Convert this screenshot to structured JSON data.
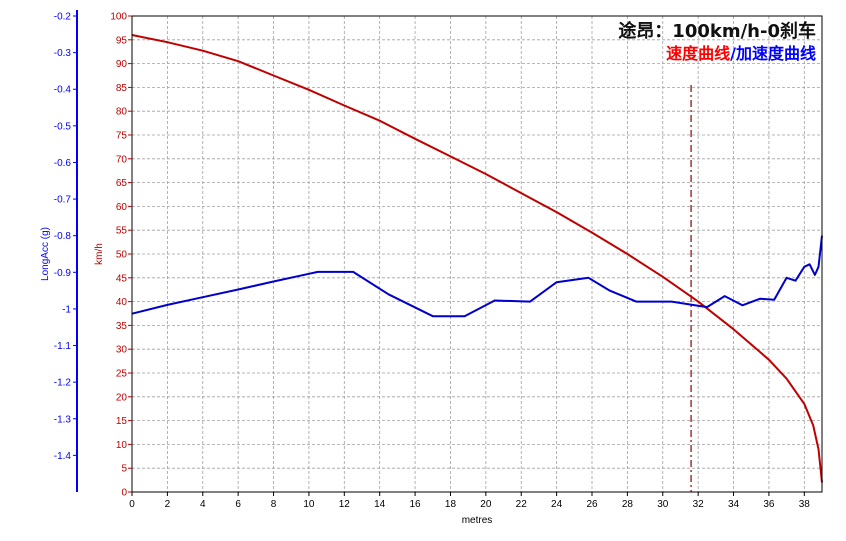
{
  "chart_data": {
    "type": "line",
    "title": "途昂：100km/h-0刹车",
    "subtitle": {
      "part1": "速度曲线",
      "separator": "/",
      "part2": "加速度曲线"
    },
    "xlabel": "metres",
    "xlim": [
      0,
      39
    ],
    "xticks": [
      0,
      2,
      4,
      6,
      8,
      10,
      12,
      14,
      16,
      18,
      20,
      22,
      24,
      26,
      28,
      30,
      32,
      34,
      36,
      38
    ],
    "ylabel_right": "km/h",
    "ylim_right": [
      0,
      100
    ],
    "yticks_right": [
      0,
      5,
      10,
      15,
      20,
      25,
      30,
      35,
      40,
      45,
      50,
      55,
      60,
      65,
      70,
      75,
      80,
      85,
      90,
      95,
      100
    ],
    "ylabel_left": "LongAcc (g)",
    "ylim_left": [
      -1.5,
      -0.2
    ],
    "yticks_left": [
      -0.2,
      -0.3,
      -0.4,
      -0.5,
      -0.6,
      -0.7,
      -0.8,
      -0.9,
      -1,
      -1.1,
      -1.2,
      -1.3,
      -1.4
    ],
    "grid": true,
    "colors": {
      "speed": "#c00000",
      "accel": "#0000cc",
      "speed_axis": "#c00000",
      "accel_axis": "#0000ff",
      "marker": "#8b0000",
      "title_red": "#ff0000",
      "title_blue": "#0000ff"
    },
    "marker_x": 31.6,
    "series": [
      {
        "id": "speed",
        "axis": "right",
        "points": [
          [
            0,
            96
          ],
          [
            2,
            94.5
          ],
          [
            4,
            92.7
          ],
          [
            6,
            90.5
          ],
          [
            8,
            87.5
          ],
          [
            10,
            84.5
          ],
          [
            12,
            81.2
          ],
          [
            14,
            78
          ],
          [
            16,
            74.2
          ],
          [
            18,
            70.5
          ],
          [
            20,
            66.8
          ],
          [
            22,
            62.8
          ],
          [
            24,
            58.8
          ],
          [
            26,
            54.5
          ],
          [
            28,
            50
          ],
          [
            30,
            45.2
          ],
          [
            32,
            40
          ],
          [
            34,
            34.2
          ],
          [
            36,
            27.8
          ],
          [
            37,
            23.8
          ],
          [
            38,
            18.5
          ],
          [
            38.5,
            14
          ],
          [
            38.8,
            9
          ],
          [
            39,
            2
          ]
        ]
      },
      {
        "id": "accel",
        "axis": "left",
        "points": [
          [
            0,
            -1.013
          ],
          [
            2,
            -0.989
          ],
          [
            4,
            -0.968
          ],
          [
            6,
            -0.947
          ],
          [
            8,
            -0.925
          ],
          [
            10,
            -0.904
          ],
          [
            10.5,
            -0.899
          ],
          [
            12.5,
            -0.899
          ],
          [
            14.5,
            -0.96
          ],
          [
            17,
            -1.02
          ],
          [
            18.8,
            -1.02
          ],
          [
            20.5,
            -0.977
          ],
          [
            22.5,
            -0.98
          ],
          [
            24,
            -0.927
          ],
          [
            25.8,
            -0.915
          ],
          [
            27,
            -0.95
          ],
          [
            28.5,
            -0.98
          ],
          [
            30.5,
            -0.98
          ],
          [
            32.5,
            -0.995
          ],
          [
            33.5,
            -0.965
          ],
          [
            34.5,
            -0.99
          ],
          [
            35.5,
            -0.972
          ],
          [
            36.3,
            -0.975
          ],
          [
            37,
            -0.915
          ],
          [
            37.5,
            -0.923
          ],
          [
            38,
            -0.885
          ],
          [
            38.3,
            -0.878
          ],
          [
            38.6,
            -0.907
          ],
          [
            38.8,
            -0.885
          ],
          [
            39,
            -0.8
          ]
        ]
      }
    ]
  }
}
